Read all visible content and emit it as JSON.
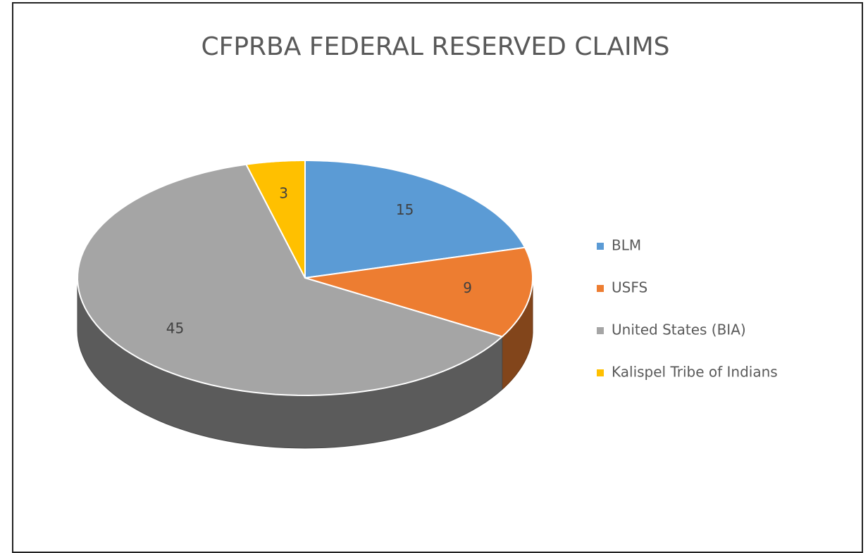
{
  "chart_data": {
    "type": "pie3d",
    "title": "CFPRBA FEDERAL RESERVED CLAIMS",
    "categories": [
      "BLM",
      "USFS",
      "United States (BIA)",
      "Kalispel Tribe of Indians"
    ],
    "values": [
      15,
      9,
      45,
      3
    ],
    "colors": [
      "#5b9bd5",
      "#ed7d31",
      "#a5a5a5",
      "#ffc000"
    ],
    "legend": "right"
  }
}
